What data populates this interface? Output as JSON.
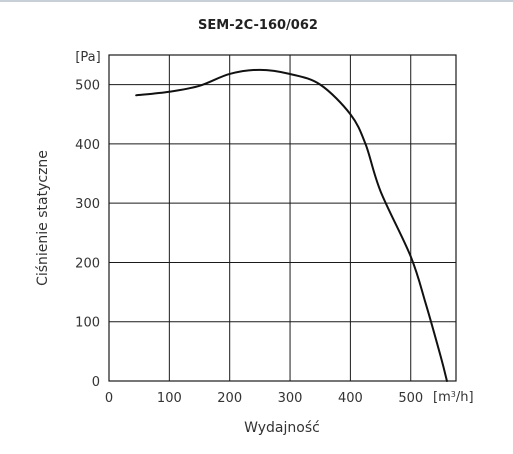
{
  "chart_data": {
    "type": "line",
    "title": "SEM-2C-160/062",
    "xlabel": "Wydajność",
    "ylabel": "Ciśnienie statyczne",
    "x_unit_prefix": "[m",
    "x_unit_sup": "3",
    "x_unit_suffix": "/h]",
    "y_unit": "[Pa]",
    "xlim": [
      0,
      575
    ],
    "ylim": [
      0,
      550
    ],
    "x_ticks": [
      0,
      100,
      200,
      300,
      400,
      500
    ],
    "y_ticks": [
      0,
      100,
      200,
      300,
      400,
      500
    ],
    "grid": true,
    "series": [
      {
        "color": "#111111",
        "x": [
          45,
          100,
          150,
          200,
          250,
          300,
          350,
          400,
          425,
          450,
          500,
          525,
          550,
          560
        ],
        "y": [
          482,
          488,
          498,
          518,
          525,
          518,
          500,
          450,
          400,
          320,
          210,
          130,
          40,
          0
        ]
      }
    ]
  }
}
